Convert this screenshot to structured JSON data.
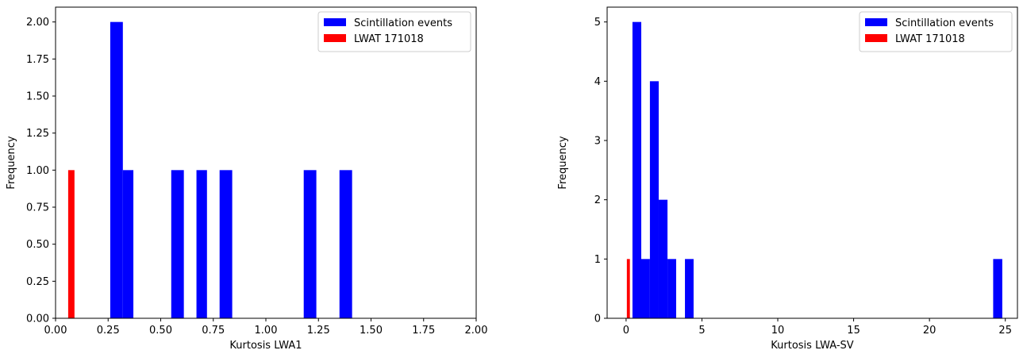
{
  "chart_data": [
    {
      "type": "bar",
      "subtype": "histogram",
      "xlabel": "Kurtosis LWA1",
      "ylabel": "Frequency",
      "xlim": [
        0,
        2.0
      ],
      "ylim": [
        0,
        2.1
      ],
      "xticks": [
        "0.00",
        "0.25",
        "0.50",
        "0.75",
        "1.00",
        "1.25",
        "1.50",
        "1.75",
        "2.00"
      ],
      "xtick_values": [
        0,
        0.25,
        0.5,
        0.75,
        1.0,
        1.25,
        1.5,
        1.75,
        2.0
      ],
      "yticks": [
        "0.00",
        "0.25",
        "0.50",
        "0.75",
        "1.00",
        "1.25",
        "1.50",
        "1.75",
        "2.00"
      ],
      "ytick_values": [
        0,
        0.25,
        0.5,
        0.75,
        1.0,
        1.25,
        1.5,
        1.75,
        2.0
      ],
      "legend_position": "top-right",
      "series": [
        {
          "name": "Scintillation events",
          "color": "#0000ff",
          "bins": [
            {
              "x0": 0.26,
              "x1": 0.32,
              "value": 2
            },
            {
              "x0": 0.32,
              "x1": 0.37,
              "value": 1
            },
            {
              "x0": 0.55,
              "x1": 0.61,
              "value": 1
            },
            {
              "x0": 0.67,
              "x1": 0.72,
              "value": 1
            },
            {
              "x0": 0.78,
              "x1": 0.84,
              "value": 1
            },
            {
              "x0": 1.18,
              "x1": 1.24,
              "value": 1
            },
            {
              "x0": 1.35,
              "x1": 1.41,
              "value": 1
            }
          ]
        },
        {
          "name": "LWAT 171018",
          "color": "#ff0000",
          "bins": [
            {
              "x0": 0.06,
              "x1": 0.09,
              "value": 1
            }
          ]
        }
      ]
    },
    {
      "type": "bar",
      "subtype": "histogram",
      "xlabel": "Kurtosis LWA-SV",
      "ylabel": "Frequency",
      "xlim": [
        -1.25,
        25.8
      ],
      "ylim": [
        0,
        5.25
      ],
      "xticks": [
        "0",
        "5",
        "10",
        "15",
        "20",
        "25"
      ],
      "xtick_values": [
        0,
        5,
        10,
        15,
        20,
        25
      ],
      "yticks": [
        "0",
        "1",
        "2",
        "3",
        "4",
        "5"
      ],
      "ytick_values": [
        0,
        1,
        2,
        3,
        4,
        5
      ],
      "legend_position": "top-right",
      "series": [
        {
          "name": "Scintillation events",
          "color": "#0000ff",
          "bins": [
            {
              "x0": 0.42,
              "x1": 1.0,
              "value": 5
            },
            {
              "x0": 1.0,
              "x1": 1.57,
              "value": 1
            },
            {
              "x0": 1.57,
              "x1": 2.15,
              "value": 4
            },
            {
              "x0": 2.15,
              "x1": 2.73,
              "value": 2
            },
            {
              "x0": 2.73,
              "x1": 3.3,
              "value": 1
            },
            {
              "x0": 3.88,
              "x1": 4.45,
              "value": 1
            },
            {
              "x0": 24.2,
              "x1": 24.8,
              "value": 1
            }
          ]
        },
        {
          "name": "LWAT 171018",
          "color": "#ff0000",
          "bins": [
            {
              "x0": 0.05,
              "x1": 0.25,
              "value": 1
            }
          ]
        }
      ]
    }
  ]
}
